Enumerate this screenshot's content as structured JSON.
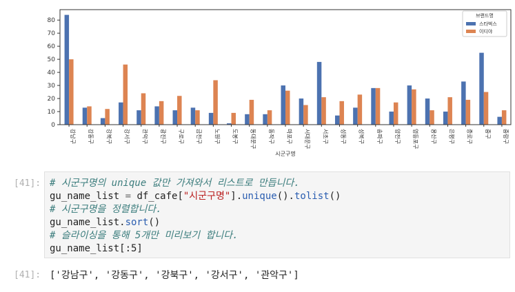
{
  "chart_data": {
    "type": "bar",
    "xlabel": "시군구명",
    "ylabel": "",
    "ylim": [
      0,
      88
    ],
    "yticks": [
      0,
      10,
      20,
      30,
      40,
      50,
      60,
      70,
      80
    ],
    "grid": false,
    "legend_title": "브랜드명",
    "legend_position": "top-right",
    "categories": [
      "강남구",
      "강동구",
      "강북구",
      "강서구",
      "관악구",
      "광진구",
      "구로구",
      "금천구",
      "노원구",
      "도봉구",
      "동대문구",
      "동작구",
      "마포구",
      "서대문구",
      "서초구",
      "성동구",
      "성북구",
      "송파구",
      "양천구",
      "영등포구",
      "용산구",
      "은평구",
      "종로구",
      "중구",
      "중랑구"
    ],
    "series": [
      {
        "name": "스타벅스",
        "color": "#4c72b0",
        "values": [
          84,
          13,
          5,
          17,
          11,
          14,
          11,
          13,
          9,
          1,
          8,
          8,
          30,
          20,
          48,
          7,
          13,
          28,
          10,
          30,
          20,
          10,
          33,
          55,
          6
        ]
      },
      {
        "name": "이디야",
        "color": "#dd8452",
        "values": [
          50,
          14,
          12,
          46,
          24,
          18,
          22,
          11,
          34,
          9,
          19,
          11,
          26,
          15,
          21,
          18,
          23,
          28,
          17,
          27,
          11,
          21,
          19,
          25,
          11
        ]
      }
    ]
  },
  "notebook": {
    "input_prompt": "[41]:",
    "output_prompt": "[41]:",
    "code": {
      "comment1": "# 시군구명의 unique 값만 가져와서 리스트로 만듭니다.",
      "line2_var": "gu_name_list ",
      "line2_eq": "=",
      "line2_df": " df_cafe[",
      "line2_str": "\"시군구명\"",
      "line2_rest_open": "].",
      "line2_fn1": "unique",
      "line2_mid": "().",
      "line2_fn2": "tolist",
      "line2_close": "()",
      "comment3": "# 시군구명을 정렬합니다.",
      "line4_var": "gu_name_list.",
      "line4_fn": "sort",
      "line4_close": "()",
      "comment5": "# 슬라이싱을 통해 5개만 미리보기 합니다.",
      "line6": "gu_name_list[:5]"
    },
    "output_text": "['강남구', '강동구', '강북구', '강서구', '관악구']"
  }
}
